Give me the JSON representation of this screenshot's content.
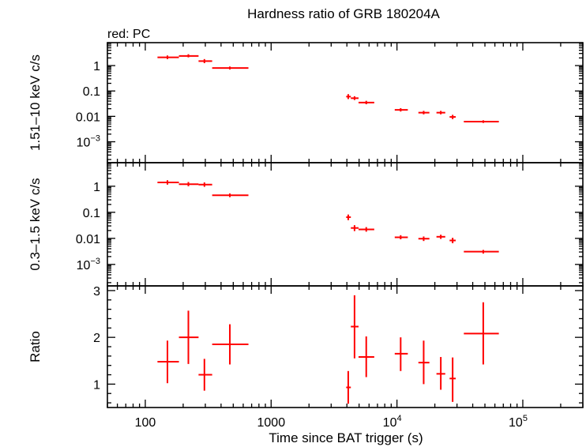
{
  "chart_data": {
    "type": "scatter",
    "title": "Hardness ratio of GRB 180204A",
    "note": "red: PC",
    "xlabel": "Time since BAT trigger (s)",
    "xscale": "log",
    "xlim": [
      50,
      300000
    ],
    "x_ticks": [
      {
        "value": 100,
        "label": "100"
      },
      {
        "value": 1000,
        "label": "1000"
      },
      {
        "value": 10000,
        "base": "10",
        "exp": "4"
      },
      {
        "value": 100000,
        "base": "10",
        "exp": "5"
      }
    ],
    "color": "#ff0000",
    "panels": [
      {
        "name": "hard",
        "ylabel": "1.51–10 keV c/s",
        "yscale": "log",
        "ylim": [
          0.00015,
          8
        ],
        "y_ticks": [
          {
            "value": 1,
            "label": "1"
          },
          {
            "value": 0.1,
            "label": "0.1"
          },
          {
            "value": 0.01,
            "label": "0.01"
          },
          {
            "value": 0.001,
            "base": "10",
            "exp": "−3"
          }
        ],
        "points": [
          {
            "x": 150,
            "xlo": 125,
            "xhi": 185,
            "y": 2.1,
            "ylo": 1.8,
            "yhi": 2.5
          },
          {
            "x": 220,
            "xlo": 185,
            "xhi": 265,
            "y": 2.4,
            "ylo": 2.1,
            "yhi": 2.8
          },
          {
            "x": 295,
            "xlo": 265,
            "xhi": 340,
            "y": 1.5,
            "ylo": 1.25,
            "yhi": 1.8
          },
          {
            "x": 470,
            "xlo": 340,
            "xhi": 660,
            "y": 0.8,
            "ylo": 0.7,
            "yhi": 0.92
          },
          {
            "x": 4100,
            "xlo": 3950,
            "xhi": 4300,
            "y": 0.06,
            "ylo": 0.048,
            "yhi": 0.075
          },
          {
            "x": 4600,
            "xlo": 4300,
            "xhi": 4950,
            "y": 0.052,
            "ylo": 0.044,
            "yhi": 0.062
          },
          {
            "x": 5700,
            "xlo": 4950,
            "xhi": 6600,
            "y": 0.035,
            "ylo": 0.03,
            "yhi": 0.041
          },
          {
            "x": 10700,
            "xlo": 9600,
            "xhi": 12200,
            "y": 0.018,
            "ylo": 0.0155,
            "yhi": 0.021
          },
          {
            "x": 16300,
            "xlo": 14800,
            "xhi": 18100,
            "y": 0.014,
            "ylo": 0.012,
            "yhi": 0.0165
          },
          {
            "x": 22300,
            "xlo": 20600,
            "xhi": 24200,
            "y": 0.014,
            "ylo": 0.012,
            "yhi": 0.0165
          },
          {
            "x": 27700,
            "xlo": 26200,
            "xhi": 29300,
            "y": 0.0095,
            "ylo": 0.0078,
            "yhi": 0.0115
          },
          {
            "x": 48500,
            "xlo": 34000,
            "xhi": 64500,
            "y": 0.0062,
            "ylo": 0.0055,
            "yhi": 0.007
          }
        ]
      },
      {
        "name": "soft",
        "ylabel": "0.3–1.5 keV c/s",
        "yscale": "log",
        "ylim": [
          0.00015,
          8
        ],
        "y_ticks": [
          {
            "value": 1,
            "label": "1"
          },
          {
            "value": 0.1,
            "label": "0.1"
          },
          {
            "value": 0.01,
            "label": "0.01"
          },
          {
            "value": 0.001,
            "base": "10",
            "exp": "−3"
          }
        ],
        "points": [
          {
            "x": 150,
            "xlo": 125,
            "xhi": 185,
            "y": 1.4,
            "ylo": 1.15,
            "yhi": 1.7
          },
          {
            "x": 220,
            "xlo": 185,
            "xhi": 265,
            "y": 1.2,
            "ylo": 1.0,
            "yhi": 1.45
          },
          {
            "x": 295,
            "xlo": 265,
            "xhi": 340,
            "y": 1.15,
            "ylo": 0.95,
            "yhi": 1.4
          },
          {
            "x": 470,
            "xlo": 340,
            "xhi": 660,
            "y": 0.45,
            "ylo": 0.38,
            "yhi": 0.53
          },
          {
            "x": 4100,
            "xlo": 3950,
            "xhi": 4300,
            "y": 0.065,
            "ylo": 0.05,
            "yhi": 0.082
          },
          {
            "x": 4600,
            "xlo": 4300,
            "xhi": 4950,
            "y": 0.025,
            "ylo": 0.019,
            "yhi": 0.032
          },
          {
            "x": 5700,
            "xlo": 4950,
            "xhi": 6600,
            "y": 0.022,
            "ylo": 0.018,
            "yhi": 0.027
          },
          {
            "x": 10700,
            "xlo": 9600,
            "xhi": 12200,
            "y": 0.011,
            "ylo": 0.0092,
            "yhi": 0.0132
          },
          {
            "x": 16300,
            "xlo": 14800,
            "xhi": 18100,
            "y": 0.0097,
            "ylo": 0.0079,
            "yhi": 0.0118
          },
          {
            "x": 22300,
            "xlo": 20600,
            "xhi": 24200,
            "y": 0.0115,
            "ylo": 0.0095,
            "yhi": 0.0138
          },
          {
            "x": 27700,
            "xlo": 26200,
            "xhi": 29300,
            "y": 0.0083,
            "ylo": 0.0065,
            "yhi": 0.0105
          },
          {
            "x": 48500,
            "xlo": 34000,
            "xhi": 64500,
            "y": 0.0031,
            "ylo": 0.0026,
            "yhi": 0.0036
          }
        ]
      },
      {
        "name": "ratio",
        "ylabel": "Ratio",
        "yscale": "linear",
        "ylim": [
          0.5,
          3.1
        ],
        "y_ticks": [
          {
            "value": 1,
            "label": "1"
          },
          {
            "value": 2,
            "label": "2"
          },
          {
            "value": 3,
            "label": "3"
          }
        ],
        "points": [
          {
            "x": 150,
            "xlo": 125,
            "xhi": 185,
            "y": 1.48,
            "ylo": 1.02,
            "yhi": 1.93
          },
          {
            "x": 220,
            "xlo": 185,
            "xhi": 265,
            "y": 2.0,
            "ylo": 1.43,
            "yhi": 2.57
          },
          {
            "x": 295,
            "xlo": 265,
            "xhi": 340,
            "y": 1.2,
            "ylo": 0.86,
            "yhi": 1.54
          },
          {
            "x": 470,
            "xlo": 340,
            "xhi": 660,
            "y": 1.85,
            "ylo": 1.42,
            "yhi": 2.28
          },
          {
            "x": 4100,
            "xlo": 3950,
            "xhi": 4300,
            "y": 0.93,
            "ylo": 0.58,
            "yhi": 1.28
          },
          {
            "x": 4600,
            "xlo": 4300,
            "xhi": 4950,
            "y": 2.23,
            "ylo": 1.55,
            "yhi": 2.9
          },
          {
            "x": 5700,
            "xlo": 4950,
            "xhi": 6600,
            "y": 1.58,
            "ylo": 1.15,
            "yhi": 2.02
          },
          {
            "x": 10700,
            "xlo": 9600,
            "xhi": 12200,
            "y": 1.65,
            "ylo": 1.28,
            "yhi": 2.0
          },
          {
            "x": 16300,
            "xlo": 14800,
            "xhi": 18100,
            "y": 1.46,
            "ylo": 1.0,
            "yhi": 1.93
          },
          {
            "x": 22300,
            "xlo": 20600,
            "xhi": 24200,
            "y": 1.22,
            "ylo": 0.88,
            "yhi": 1.58
          },
          {
            "x": 27700,
            "xlo": 26200,
            "xhi": 29300,
            "y": 1.12,
            "ylo": 0.62,
            "yhi": 1.57
          },
          {
            "x": 48500,
            "xlo": 34000,
            "xhi": 64500,
            "y": 2.08,
            "ylo": 1.42,
            "yhi": 2.75
          }
        ]
      }
    ]
  }
}
